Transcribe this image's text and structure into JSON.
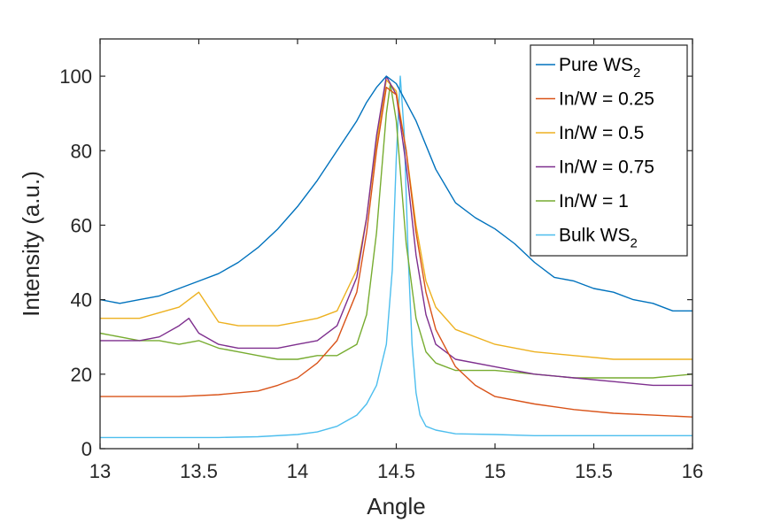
{
  "chart_data": {
    "type": "line",
    "xlabel": "Angle",
    "ylabel": "Intensity (a.u.)",
    "xlim": [
      13,
      16
    ],
    "ylim": [
      0,
      110
    ],
    "xticks": [
      13,
      13.5,
      14,
      14.5,
      15,
      15.5,
      16
    ],
    "xtick_labels": [
      "13",
      "13.5",
      "14",
      "14.5",
      "15",
      "15.5",
      "16"
    ],
    "yticks": [
      0,
      20,
      40,
      60,
      80,
      100
    ],
    "ytick_labels": [
      "0",
      "20",
      "40",
      "60",
      "80",
      "100"
    ],
    "grid": false,
    "legend_position": "top-right",
    "series": [
      {
        "name": "Pure WS",
        "name_sub": "2",
        "color": "#0072BD",
        "x": [
          13.0,
          13.1,
          13.2,
          13.3,
          13.4,
          13.5,
          13.6,
          13.7,
          13.8,
          13.9,
          14.0,
          14.1,
          14.2,
          14.3,
          14.35,
          14.4,
          14.45,
          14.5,
          14.55,
          14.6,
          14.7,
          14.8,
          14.9,
          15.0,
          15.1,
          15.2,
          15.3,
          15.4,
          15.5,
          15.6,
          15.7,
          15.8,
          15.9,
          16.0
        ],
        "y": [
          40,
          39,
          40,
          41,
          43,
          45,
          47,
          50,
          54,
          59,
          65,
          72,
          80,
          88,
          93,
          97,
          100,
          98,
          93,
          88,
          75,
          66,
          62,
          59,
          55,
          50,
          46,
          45,
          43,
          42,
          40,
          39,
          37,
          37
        ]
      },
      {
        "name": "In/W = 0.25",
        "color": "#D95319",
        "x": [
          13.0,
          13.2,
          13.4,
          13.6,
          13.8,
          13.9,
          14.0,
          14.1,
          14.2,
          14.3,
          14.35,
          14.4,
          14.45,
          14.5,
          14.55,
          14.6,
          14.65,
          14.7,
          14.8,
          14.9,
          15.0,
          15.2,
          15.4,
          15.6,
          15.8,
          16.0
        ],
        "y": [
          14,
          14,
          14,
          14.5,
          15.5,
          17,
          19,
          23,
          29,
          42,
          58,
          80,
          97,
          95,
          80,
          58,
          42,
          32,
          22,
          17,
          14,
          12,
          10.5,
          9.5,
          9,
          8.5
        ]
      },
      {
        "name": "In/W = 0.5",
        "color": "#EDB120",
        "x": [
          13.0,
          13.2,
          13.4,
          13.5,
          13.6,
          13.7,
          13.8,
          13.9,
          14.0,
          14.1,
          14.2,
          14.3,
          14.35,
          14.4,
          14.45,
          14.5,
          14.55,
          14.6,
          14.65,
          14.7,
          14.8,
          15.0,
          15.2,
          15.4,
          15.6,
          15.8,
          16.0
        ],
        "y": [
          35,
          35,
          38,
          42,
          34,
          33,
          33,
          33,
          34,
          35,
          37,
          48,
          62,
          82,
          99,
          96,
          80,
          60,
          45,
          38,
          32,
          28,
          26,
          25,
          24,
          24,
          24
        ]
      },
      {
        "name": "In/W = 0.75",
        "color": "#7E2F8E",
        "x": [
          13.0,
          13.2,
          13.3,
          13.4,
          13.45,
          13.5,
          13.6,
          13.7,
          13.8,
          13.9,
          14.0,
          14.1,
          14.2,
          14.3,
          14.35,
          14.4,
          14.45,
          14.5,
          14.55,
          14.6,
          14.65,
          14.7,
          14.8,
          15.0,
          15.2,
          15.4,
          15.6,
          15.8,
          16.0
        ],
        "y": [
          29,
          29,
          30,
          33,
          35,
          31,
          28,
          27,
          27,
          27,
          28,
          29,
          33,
          46,
          62,
          84,
          100,
          95,
          76,
          52,
          36,
          28,
          24,
          22,
          20,
          19,
          18,
          17,
          17
        ]
      },
      {
        "name": "In/W = 1",
        "color": "#77AC30",
        "x": [
          13.0,
          13.2,
          13.3,
          13.4,
          13.5,
          13.6,
          13.7,
          13.8,
          13.9,
          14.0,
          14.1,
          14.2,
          14.3,
          14.35,
          14.4,
          14.45,
          14.47,
          14.5,
          14.55,
          14.6,
          14.65,
          14.7,
          14.8,
          15.0,
          15.2,
          15.4,
          15.6,
          15.8,
          16.0
        ],
        "y": [
          31,
          29,
          29,
          28,
          29,
          27,
          26,
          25,
          24,
          24,
          25,
          25,
          28,
          36,
          58,
          90,
          98,
          88,
          55,
          35,
          26,
          23,
          21,
          21,
          20,
          19,
          19,
          19,
          20
        ]
      },
      {
        "name": "Bulk WS",
        "name_sub": "2",
        "color": "#4DBEEE",
        "x": [
          13.0,
          13.2,
          13.4,
          13.6,
          13.8,
          14.0,
          14.1,
          14.2,
          14.3,
          14.35,
          14.4,
          14.45,
          14.48,
          14.5,
          14.52,
          14.54,
          14.56,
          14.58,
          14.6,
          14.62,
          14.65,
          14.7,
          14.8,
          15.0,
          15.2,
          15.5,
          15.8,
          16.0
        ],
        "y": [
          3,
          3,
          3,
          3,
          3.2,
          3.8,
          4.5,
          6,
          9,
          12,
          17,
          28,
          48,
          78,
          100,
          85,
          52,
          28,
          15,
          9,
          6,
          5,
          4,
          3.8,
          3.5,
          3.5,
          3.5,
          3.5
        ]
      }
    ]
  }
}
